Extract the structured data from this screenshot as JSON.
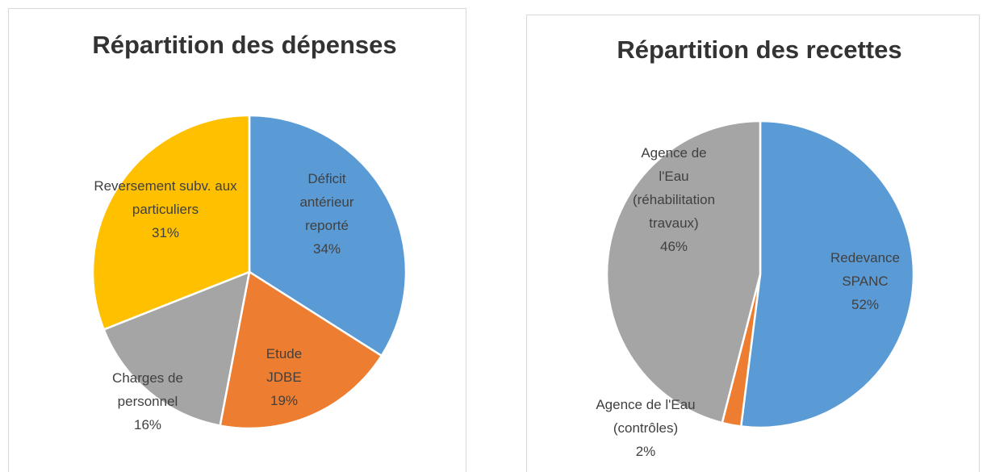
{
  "chart_data": [
    {
      "type": "pie",
      "title": "Répartition des dépenses",
      "categories": [
        "Déficit antérieur reporté",
        "Etude JDBE",
        "Charges de personnel",
        "Reversement subv. aux particuliers"
      ],
      "values": [
        34,
        19,
        16,
        31
      ],
      "value_labels": [
        "34%",
        "19%",
        "16%",
        "31%"
      ],
      "colors": [
        "#5b9bd5",
        "#ed7d31",
        "#a5a5a5",
        "#ffc000"
      ]
    },
    {
      "type": "pie",
      "title": "Répartition des recettes",
      "categories": [
        "Redevance SPANC",
        "Agence de l'Eau (contrôles)",
        "Agence de l'Eau (réhabilitation travaux)"
      ],
      "values": [
        52,
        2,
        46
      ],
      "value_labels": [
        "52%",
        "2%",
        "46%"
      ],
      "colors": [
        "#5b9bd5",
        "#ed7d31",
        "#a5a5a5"
      ]
    }
  ]
}
